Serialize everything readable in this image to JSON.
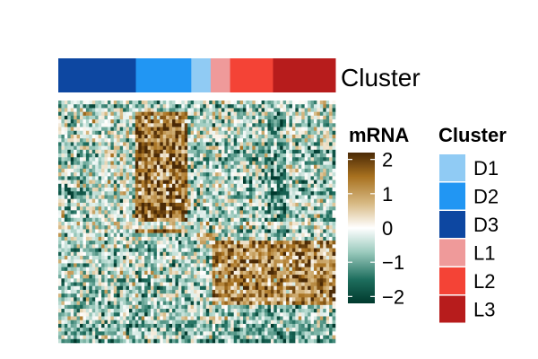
{
  "chart_data": {
    "type": "heatmap",
    "title": "",
    "annotation": {
      "label": "Cluster",
      "segments": [
        {
          "cluster": "D3",
          "fraction": 0.28
        },
        {
          "cluster": "D2",
          "fraction": 0.2
        },
        {
          "cluster": "D1",
          "fraction": 0.07
        },
        {
          "cluster": "L1",
          "fraction": 0.07
        },
        {
          "cluster": "L2",
          "fraction": 0.155
        },
        {
          "cluster": "L3",
          "fraction": 0.225
        }
      ]
    },
    "color_legend": {
      "title": "mRNA",
      "range": [
        -2.2,
        2.2
      ],
      "ticks": [
        2,
        1,
        0,
        -1,
        -2
      ],
      "tick_labels": [
        "2",
        "1",
        "0",
        "−1",
        "−2"
      ],
      "stops": [
        {
          "value": -2.2,
          "color": "#00392d"
        },
        {
          "value": -1.5,
          "color": "#1e6e5e"
        },
        {
          "value": -0.7,
          "color": "#9ccbbe"
        },
        {
          "value": 0,
          "color": "#ffffff"
        },
        {
          "value": 0.7,
          "color": "#d8bb86"
        },
        {
          "value": 1.5,
          "color": "#a8711f"
        },
        {
          "value": 2.2,
          "color": "#4a2906"
        }
      ]
    },
    "cluster_legend": {
      "title": "Cluster",
      "items": [
        {
          "label": "D1",
          "color": "#90cbf4"
        },
        {
          "label": "D2",
          "color": "#2196f3"
        },
        {
          "label": "D3",
          "color": "#0d47a1"
        },
        {
          "label": "L1",
          "color": "#ef9a9a"
        },
        {
          "label": "L2",
          "color": "#f44336"
        },
        {
          "label": "L3",
          "color": "#b71c1c"
        }
      ]
    },
    "matrix": {
      "rows": 64,
      "columns": 90,
      "pattern": "Noisy expression matrix; genes cluster into blocks: rows ~4-14% brown in columns ~30-45%, rows ~48-82% brown in columns ~55-100%, light green background elsewhere"
    }
  }
}
